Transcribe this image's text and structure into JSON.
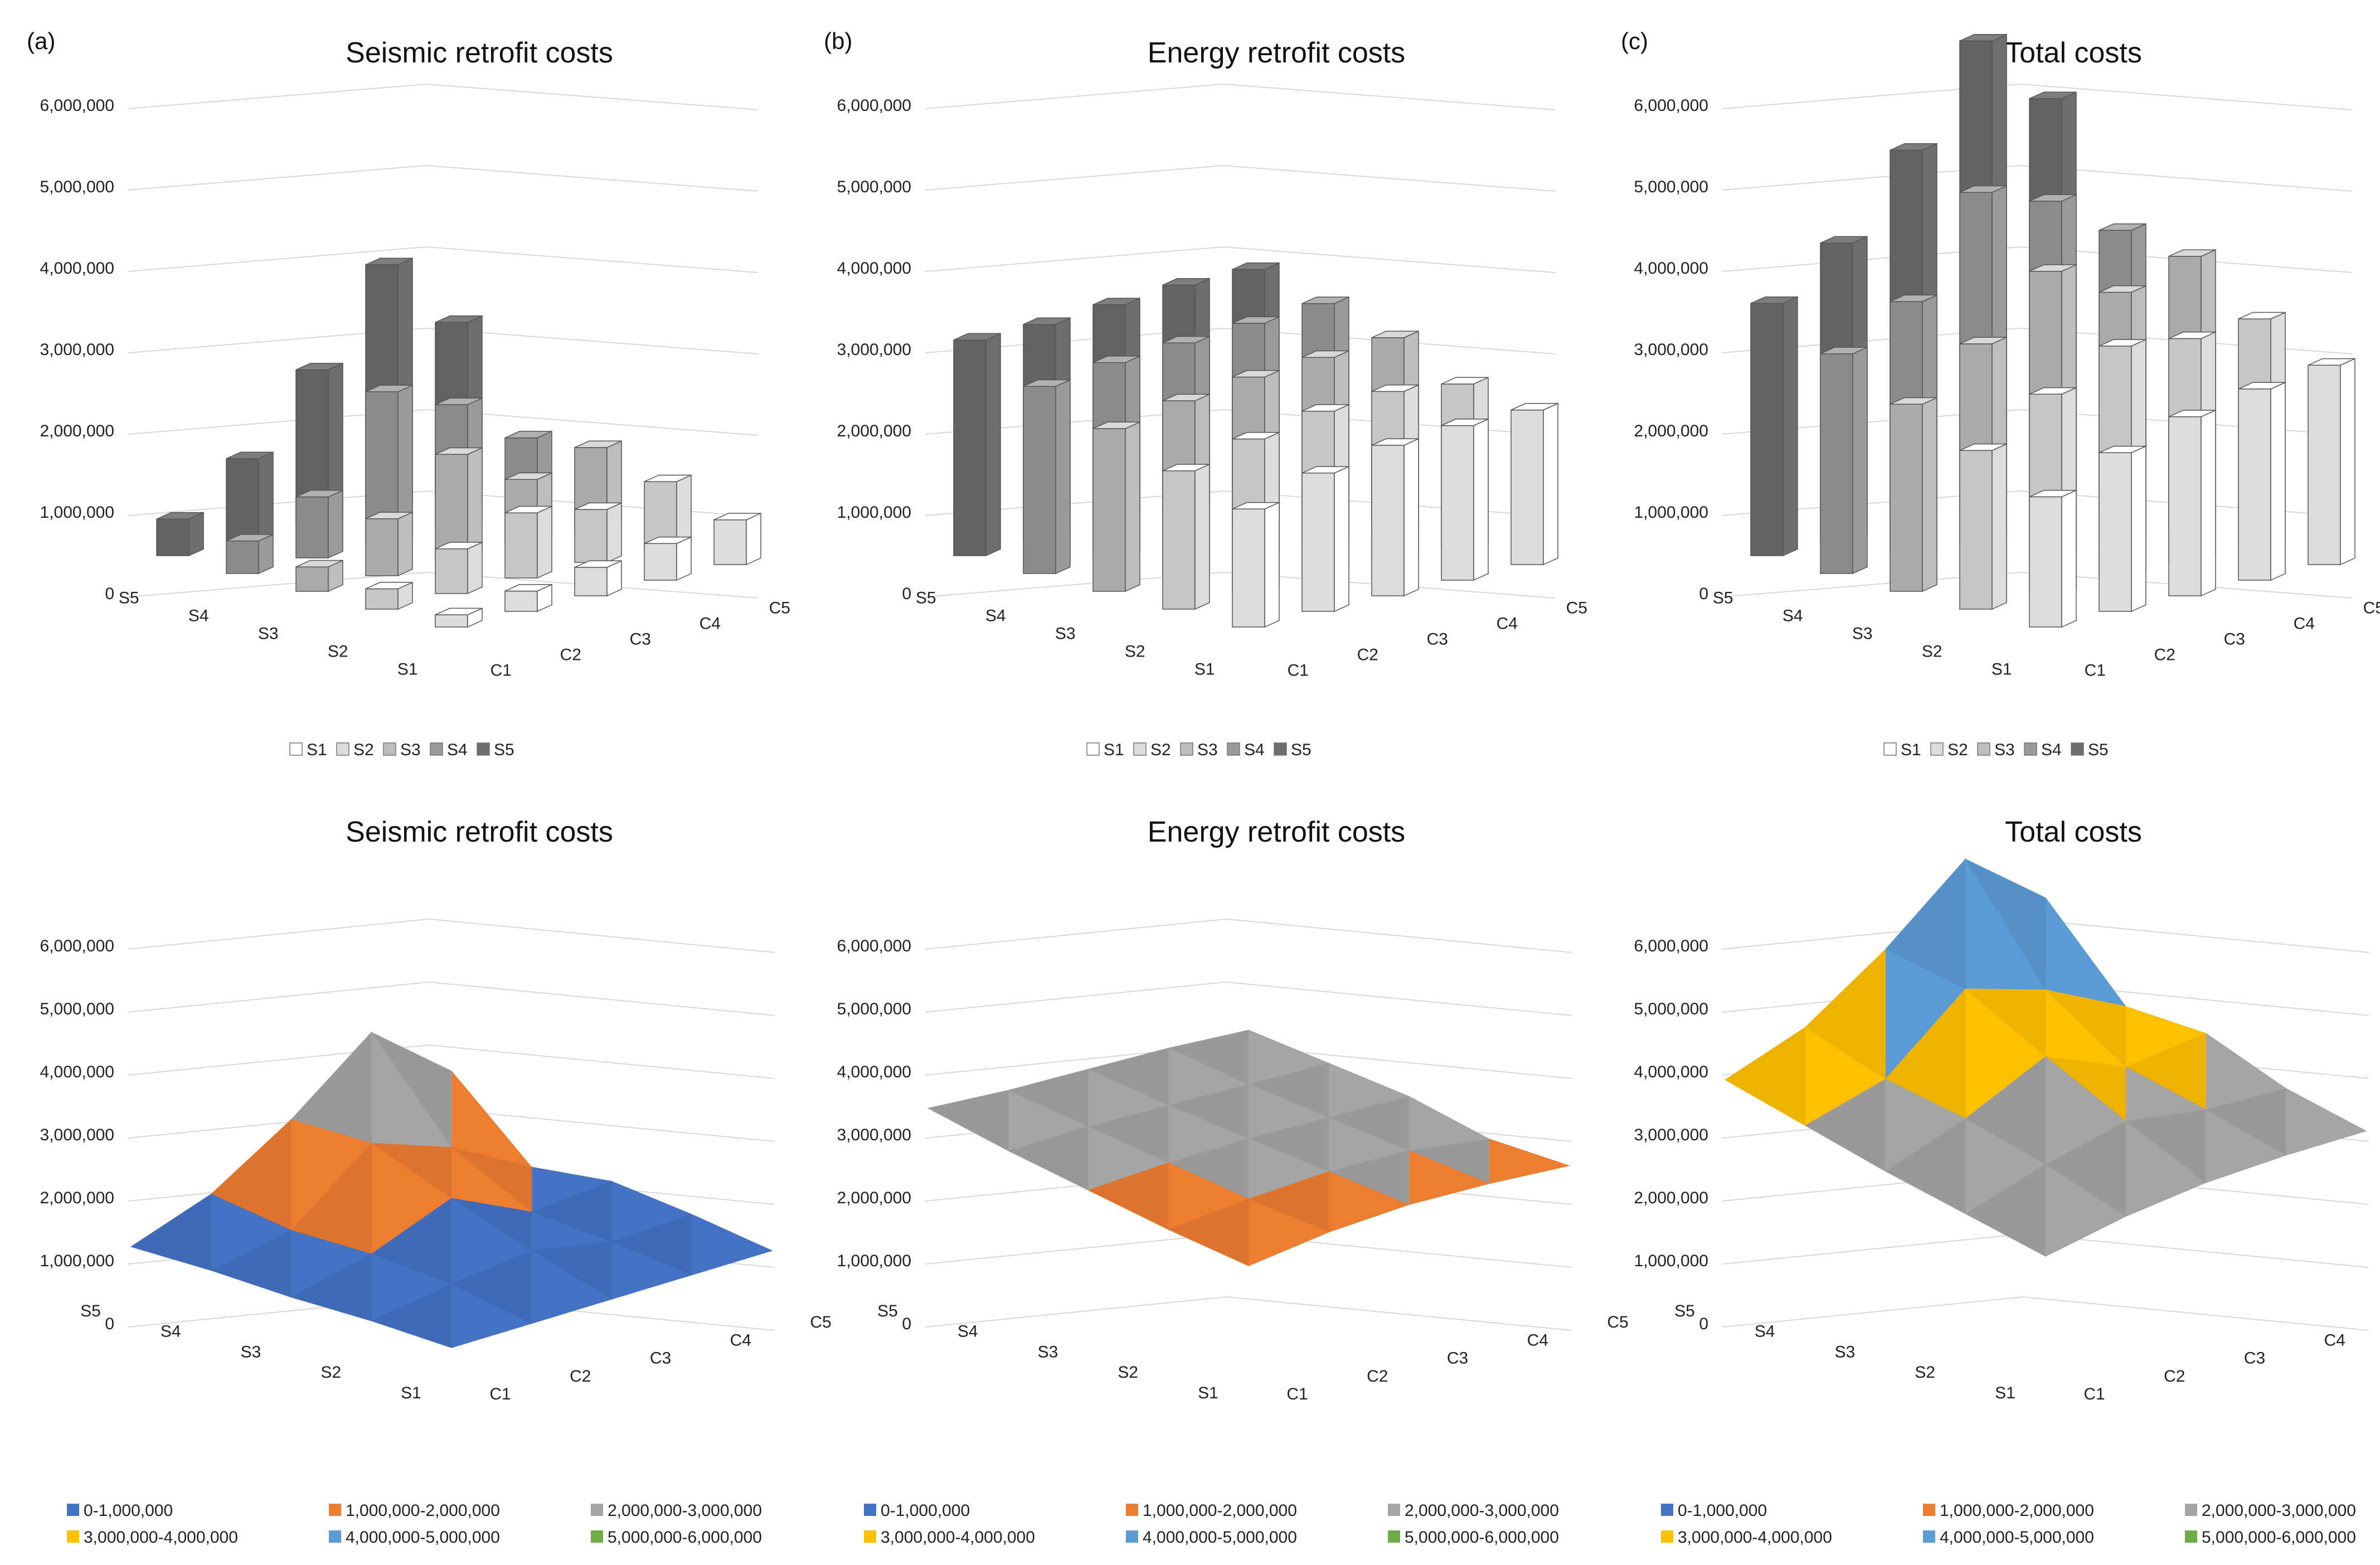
{
  "panel_labels": [
    "(a)",
    "(b)",
    "(c)"
  ],
  "colors": {
    "series": [
      "#ffffff",
      "#dcdcdc",
      "#bdbdbd",
      "#9a9a9a",
      "#6e6e6e"
    ],
    "bands": [
      "#4472c4",
      "#ed7d31",
      "#a5a5a5",
      "#ffc000",
      "#5b9bd5",
      "#70ad47"
    ]
  },
  "chart_data": [
    {
      "id": "a_bar",
      "type": "bar",
      "title": "Seismic retrofit costs",
      "panel_label": "(a)",
      "categories": [
        "C1",
        "C2",
        "C3",
        "C4",
        "C5"
      ],
      "ylim": [
        0,
        6000000
      ],
      "ytick_labels": [
        "0",
        "1,000,000",
        "2,000,000",
        "3,000,000",
        "4,000,000",
        "5,000,000",
        "6,000,000"
      ],
      "legend": [
        "S1",
        "S2",
        "S3",
        "S4",
        "S5"
      ],
      "series": [
        {
          "name": "S1",
          "values": [
            150000,
            250000,
            350000,
            450000,
            550000
          ]
        },
        {
          "name": "S2",
          "values": [
            250000,
            550000,
            800000,
            650000,
            800000
          ]
        },
        {
          "name": "S3",
          "values": [
            300000,
            700000,
            1300000,
            800000,
            1000000
          ]
        },
        {
          "name": "S4",
          "values": [
            400000,
            750000,
            1850000,
            1500000,
            900000
          ]
        },
        {
          "name": "S5",
          "values": [
            450000,
            1000000,
            1900000,
            3000000,
            2100000
          ]
        }
      ]
    },
    {
      "id": "b_bar",
      "type": "bar",
      "title": "Energy retrofit costs",
      "panel_label": "(b)",
      "categories": [
        "C1",
        "C2",
        "C3",
        "C4",
        "C5"
      ],
      "ylim": [
        0,
        6000000
      ],
      "ytick_labels": [
        "0",
        "1,000,000",
        "2,000,000",
        "3,000,000",
        "4,000,000",
        "5,000,000",
        "6,000,000"
      ],
      "legend": [
        "S1",
        "S2",
        "S3",
        "S4",
        "S5"
      ],
      "series": [
        {
          "name": "S1",
          "values": [
            1450000,
            1700000,
            1850000,
            1900000,
            1900000
          ]
        },
        {
          "name": "S2",
          "values": [
            1700000,
            1900000,
            2050000,
            2100000,
            2000000
          ]
        },
        {
          "name": "S3",
          "values": [
            2000000,
            2150000,
            2250000,
            2300000,
            2350000
          ]
        },
        {
          "name": "S4",
          "values": [
            2300000,
            2400000,
            2450000,
            2500000,
            2550000
          ]
        },
        {
          "name": "S5",
          "values": [
            2650000,
            2650000,
            2700000,
            2750000,
            2750000
          ]
        }
      ]
    },
    {
      "id": "c_bar",
      "type": "bar",
      "title": "Total costs",
      "panel_label": "(c)",
      "categories": [
        "C1",
        "C2",
        "C3",
        "C4",
        "C5"
      ],
      "ylim": [
        0,
        6000000
      ],
      "ytick_labels": [
        "0",
        "1,000,000",
        "2,000,000",
        "3,000,000",
        "4,000,000",
        "5,000,000",
        "6,000,000"
      ],
      "legend": [
        "S1",
        "S2",
        "S3",
        "S4",
        "S5"
      ],
      "series": [
        {
          "name": "S1",
          "values": [
            1600000,
            1950000,
            2200000,
            2350000,
            2450000
          ]
        },
        {
          "name": "S2",
          "values": [
            1950000,
            2450000,
            2850000,
            2750000,
            2800000
          ]
        },
        {
          "name": "S3",
          "values": [
            2300000,
            2850000,
            3550000,
            3100000,
            3350000
          ]
        },
        {
          "name": "S4",
          "values": [
            2700000,
            3150000,
            4300000,
            4000000,
            3450000
          ]
        },
        {
          "name": "S5",
          "values": [
            3100000,
            3650000,
            4600000,
            5750000,
            4850000
          ]
        }
      ]
    },
    {
      "id": "a_surf",
      "type": "surface",
      "title": "Seismic retrofit costs",
      "categories": [
        "C1",
        "C2",
        "C3",
        "C4",
        "C5"
      ],
      "depth_labels": [
        "S5",
        "S4",
        "S3",
        "S2",
        "S1"
      ],
      "ylim": [
        0,
        6000000
      ],
      "ytick_labels": [
        "0",
        "1,000,000",
        "2,000,000",
        "3,000,000",
        "4,000,000",
        "5,000,000",
        "6,000,000"
      ],
      "legend": [
        "0-1,000,000",
        "1,000,000-2,000,000",
        "2,000,000-3,000,000",
        "3,000,000-4,000,000",
        "4,000,000-5,000,000",
        "5,000,000-6,000,000"
      ],
      "grid": [
        [
          150000,
          250000,
          350000,
          450000,
          550000
        ],
        [
          250000,
          550000,
          800000,
          650000,
          800000
        ],
        [
          300000,
          700000,
          1300000,
          800000,
          1000000
        ],
        [
          400000,
          750000,
          1850000,
          1500000,
          900000
        ],
        [
          450000,
          1000000,
          1900000,
          3000000,
          2100000
        ]
      ]
    },
    {
      "id": "b_surf",
      "type": "surface",
      "title": "Energy retrofit costs",
      "categories": [
        "C1",
        "C2",
        "C3",
        "C4",
        "C5"
      ],
      "depth_labels": [
        "S5",
        "S4",
        "S3",
        "S2",
        "S1"
      ],
      "ylim": [
        0,
        6000000
      ],
      "ytick_labels": [
        "0",
        "1,000,000",
        "2,000,000",
        "3,000,000",
        "4,000,000",
        "5,000,000",
        "6,000,000"
      ],
      "legend": [
        "0-1,000,000",
        "1,000,000-2,000,000",
        "2,000,000-3,000,000",
        "3,000,000-4,000,000",
        "4,000,000-5,000,000",
        "5,000,000-6,000,000"
      ],
      "grid": [
        [
          1450000,
          1700000,
          1850000,
          1900000,
          1900000
        ],
        [
          1700000,
          1900000,
          2050000,
          2100000,
          2000000
        ],
        [
          2000000,
          2150000,
          2250000,
          2300000,
          2350000
        ],
        [
          2300000,
          2400000,
          2450000,
          2500000,
          2550000
        ],
        [
          2650000,
          2650000,
          2700000,
          2750000,
          2750000
        ]
      ]
    },
    {
      "id": "c_surf",
      "type": "surface",
      "title": "Total costs",
      "categories": [
        "C1",
        "C2",
        "C3",
        "C4",
        "C5"
      ],
      "depth_labels": [
        "S5",
        "S4",
        "S3",
        "S2",
        "S1"
      ],
      "ylim": [
        0,
        6000000
      ],
      "ytick_labels": [
        "0",
        "1,000,000",
        "2,000,000",
        "3,000,000",
        "4,000,000",
        "5,000,000",
        "6,000,000"
      ],
      "legend": [
        "0-1,000,000",
        "1,000,000-2,000,000",
        "2,000,000-3,000,000",
        "3,000,000-4,000,000",
        "4,000,000-5,000,000",
        "5,000,000-6,000,000"
      ],
      "grid": [
        [
          1600000,
          1950000,
          2200000,
          2350000,
          2450000
        ],
        [
          1950000,
          2450000,
          2850000,
          2750000,
          2800000
        ],
        [
          2300000,
          2850000,
          3550000,
          3100000,
          3350000
        ],
        [
          2700000,
          3150000,
          4300000,
          4000000,
          3450000
        ],
        [
          3100000,
          3650000,
          4600000,
          5750000,
          4850000
        ]
      ]
    }
  ]
}
